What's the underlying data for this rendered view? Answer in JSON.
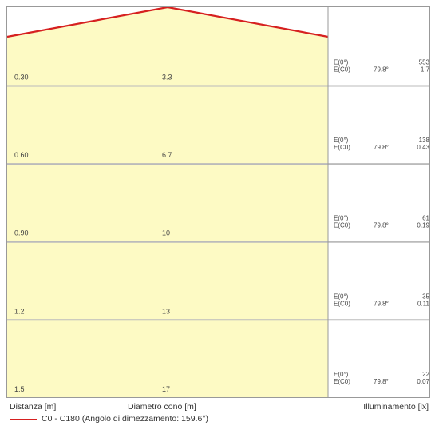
{
  "chart_data": {
    "type": "table",
    "rows": [
      {
        "distance": "0.30",
        "diameter": "3.3",
        "e0_label": "E(0°)",
        "e0_value": "553",
        "ec0_label": "E(C0)",
        "angle": "79.8°",
        "ec0_value": "1.7"
      },
      {
        "distance": "0.60",
        "diameter": "6.7",
        "e0_label": "E(0°)",
        "e0_value": "138",
        "ec0_label": "E(C0)",
        "angle": "79.8°",
        "ec0_value": "0.43"
      },
      {
        "distance": "0.90",
        "diameter": "10",
        "e0_label": "E(0°)",
        "e0_value": "61",
        "ec0_label": "E(C0)",
        "angle": "79.8°",
        "ec0_value": "0.19"
      },
      {
        "distance": "1.2",
        "diameter": "13",
        "e0_label": "E(0°)",
        "e0_value": "35",
        "ec0_label": "E(C0)",
        "angle": "79.8°",
        "ec0_value": "0.11"
      },
      {
        "distance": "1.5",
        "diameter": "17",
        "e0_label": "E(0°)",
        "e0_value": "22",
        "ec0_label": "E(C0)",
        "angle": "79.8°",
        "ec0_value": "0.07"
      }
    ],
    "beam_angle_deg": 159.6
  },
  "footer": {
    "distance_label": "Distanza [m]",
    "diameter_label": "Diametro cono [m]",
    "illuminance_label": "Illuminamento [lx]",
    "legend_label": "C0 - C180 (Angolo di dimezzamento: 159.6°)"
  },
  "colors": {
    "cone_fill": "#fdfac4",
    "cone_line": "#d62020",
    "grid": "#bbbbbb",
    "border": "#999999"
  }
}
